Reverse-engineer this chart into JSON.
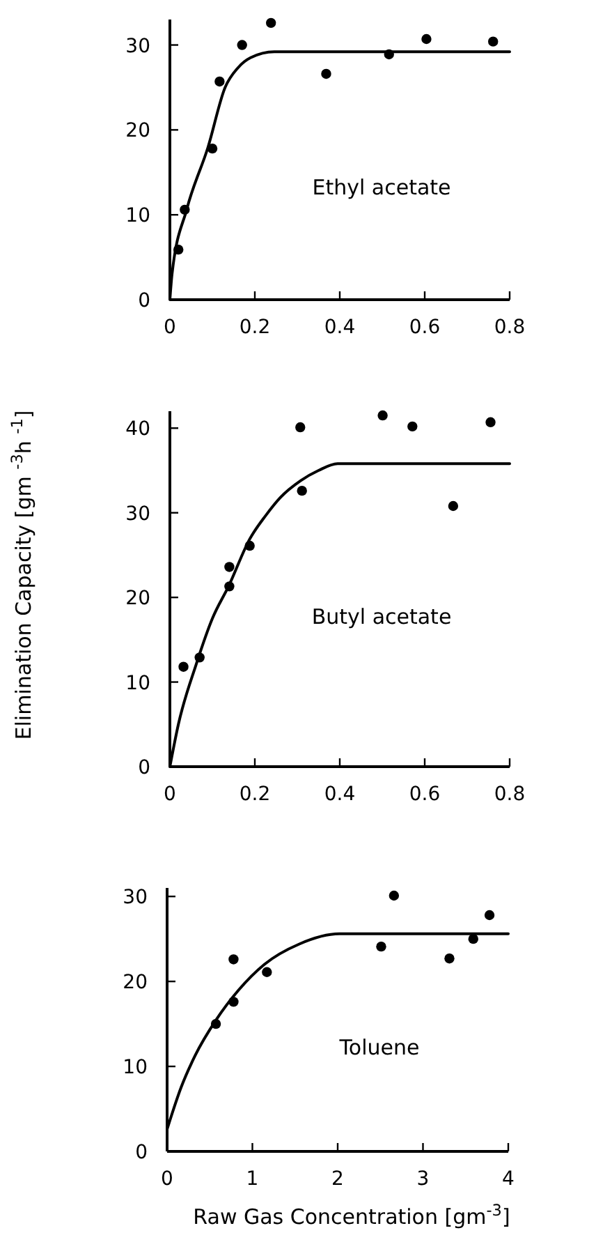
{
  "chart_data": [
    {
      "type": "scatter",
      "annotations": [
        "Ethyl acetate"
      ],
      "xlim": [
        0,
        0.8
      ],
      "ylim": [
        0,
        33
      ],
      "xticks": [
        0,
        0.2,
        0.4,
        0.6,
        0.8
      ],
      "yticks": [
        0,
        10,
        20,
        30
      ],
      "grid": false,
      "series": [
        {
          "color": "#000000",
          "marker": "circle",
          "x": [
            0.02,
            0.035,
            0.1,
            0.117,
            0.17,
            0.238,
            0.368,
            0.516,
            0.604,
            0.761
          ],
          "values": [
            5.9,
            10.6,
            17.8,
            25.7,
            30.0,
            32.6,
            26.6,
            28.9,
            30.7,
            30.4
          ]
        },
        {
          "type": "line",
          "color": "#000000",
          "line_style": "solid",
          "x": [
            0,
            0.005,
            0.04,
            0.09,
            0.13,
            0.16,
            0.19,
            0.246,
            0.8
          ],
          "values": [
            0,
            3,
            10.7,
            18,
            25,
            27.3,
            28.5,
            29.2,
            29.2
          ]
        }
      ]
    },
    {
      "type": "scatter",
      "ylabel": "Elimination Capacity [gm $^{-3}$h $^{-1}$]",
      "annotations": [
        "Butyl acetate"
      ],
      "xlim": [
        0,
        0.8
      ],
      "ylim": [
        0,
        42
      ],
      "xticks": [
        0,
        0.2,
        0.4,
        0.6,
        0.8
      ],
      "yticks": [
        0,
        10,
        20,
        30,
        40
      ],
      "grid": false,
      "series": [
        {
          "color": "#000000",
          "marker": "circle",
          "x": [
            0.032,
            0.07,
            0.14,
            0.14,
            0.188,
            0.307,
            0.311,
            0.501,
            0.571,
            0.667,
            0.755
          ],
          "values": [
            11.8,
            12.9,
            23.6,
            21.3,
            26.1,
            40.1,
            32.6,
            41.5,
            40.2,
            30.8,
            40.7
          ]
        },
        {
          "type": "line",
          "color": "#000000",
          "line_style": "solid",
          "x": [
            0,
            0.02,
            0.062,
            0.1,
            0.139,
            0.188,
            0.226,
            0.26,
            0.308,
            0.35,
            0.395,
            0.8
          ],
          "values": [
            0,
            5,
            12.1,
            17.5,
            21.4,
            26.9,
            29.7,
            31.8,
            33.8,
            35,
            35.8,
            35.8
          ]
        }
      ]
    },
    {
      "type": "scatter",
      "xlabel": "Raw Gas Concentration [gm$^{-3}$]",
      "annotations": [
        "Toluene"
      ],
      "xlim": [
        0,
        4
      ],
      "ylim": [
        0,
        31
      ],
      "xticks": [
        0,
        1,
        2,
        3,
        4
      ],
      "yticks": [
        0,
        10,
        20,
        30
      ],
      "grid": false,
      "series": [
        {
          "color": "#000000",
          "marker": "circle",
          "x": [
            0.572,
            0.779,
            0.779,
            1.17,
            2.51,
            2.66,
            3.31,
            3.59,
            3.78
          ],
          "values": [
            15.0,
            22.6,
            17.6,
            21.1,
            24.1,
            30.1,
            22.7,
            25.0,
            27.8
          ]
        },
        {
          "type": "line",
          "color": "#000000",
          "line_style": "solid",
          "x": [
            0,
            0.163,
            0.33,
            0.57,
            0.84,
            1.14,
            1.55,
            2.02,
            4
          ],
          "values": [
            2.6,
            7.5,
            11.3,
            15.4,
            19,
            22,
            24.4,
            25.6,
            25.6
          ]
        }
      ]
    }
  ]
}
